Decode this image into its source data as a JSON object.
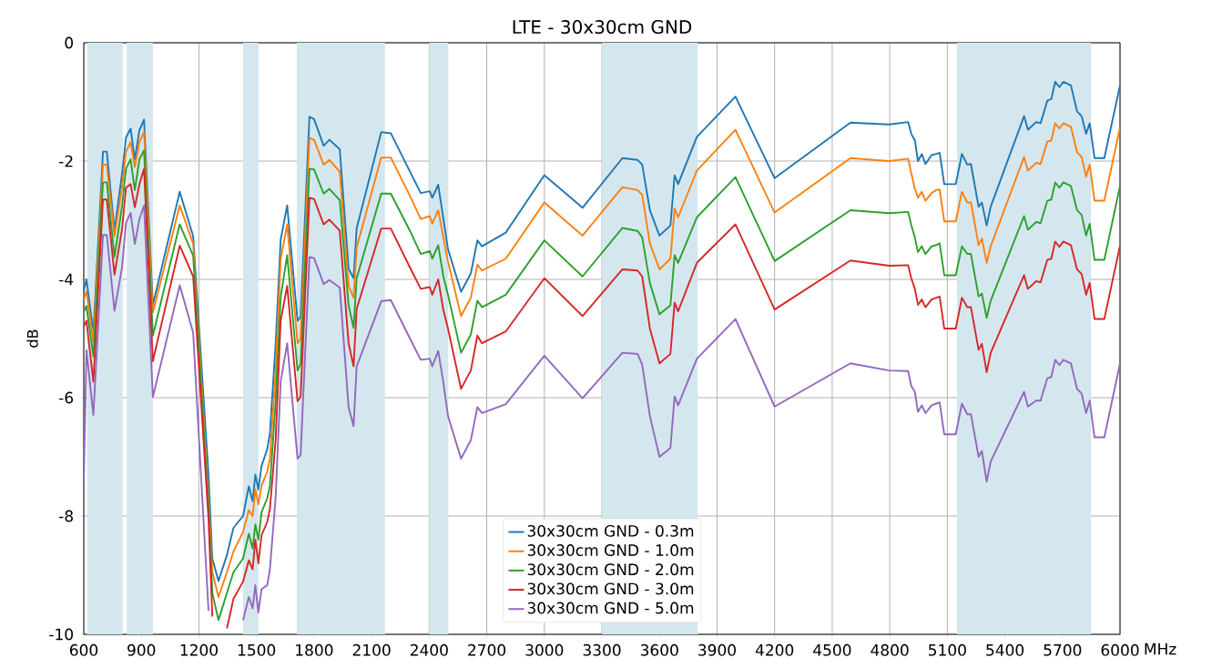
{
  "chart_data": {
    "type": "line",
    "title": "LTE - 30x30cm GND",
    "xlabel": "MHz",
    "ylabel": "dB",
    "x": [
      600,
      614,
      650,
      700,
      720,
      760,
      800,
      820,
      844,
      866,
      890,
      914,
      960,
      1100,
      1170,
      1250,
      1270,
      1302,
      1346,
      1380,
      1430,
      1460,
      1480,
      1494,
      1510,
      1526,
      1556,
      1570,
      1600,
      1626,
      1660,
      1714,
      1730,
      1776,
      1800,
      1850,
      1880,
      1934,
      1980,
      2006,
      2022,
      2150,
      2200,
      2300,
      2356,
      2403,
      2416,
      2447,
      2474,
      2498,
      2566,
      2617,
      2651,
      2675,
      2799,
      3000,
      3199,
      3407,
      3486,
      3510,
      3550,
      3600,
      3657,
      3679,
      3697,
      3795,
      3996,
      4200,
      4595,
      4797,
      4896,
      4912,
      4931,
      4947,
      4967,
      4986,
      5018,
      5042,
      5060,
      5084,
      5144,
      5176,
      5204,
      5223,
      5263,
      5280,
      5305,
      5326,
      5500,
      5520,
      5563,
      5586,
      5621,
      5642,
      5662,
      5684,
      5705,
      5744,
      5776,
      5800,
      5823,
      5842,
      5867,
      5918,
      6000
    ],
    "series": [
      {
        "name": "30x30cm GND - 0.3m",
        "color": "#1f77b4",
        "values": [
          -4.2,
          -4.0,
          -4.9,
          -1.84,
          -1.84,
          -3.17,
          -2.2,
          -1.6,
          -1.45,
          -1.97,
          -1.48,
          -1.3,
          -4.43,
          -2.52,
          -3.27,
          -7.3,
          -8.72,
          -9.1,
          -8.66,
          -8.2,
          -8.0,
          -7.5,
          -7.75,
          -7.3,
          -7.55,
          -7.16,
          -6.87,
          -6.6,
          -5.08,
          -3.33,
          -2.75,
          -4.7,
          -4.63,
          -1.25,
          -1.29,
          -1.74,
          -1.64,
          -1.8,
          -3.82,
          -3.98,
          -3.14,
          -1.51,
          -1.53,
          -2.18,
          -2.54,
          -2.51,
          -2.62,
          -2.4,
          -2.98,
          -3.49,
          -4.21,
          -3.9,
          -3.34,
          -3.44,
          -3.21,
          -2.24,
          -2.79,
          -1.95,
          -1.98,
          -2.06,
          -2.83,
          -3.26,
          -3.09,
          -2.24,
          -2.39,
          -1.59,
          -0.91,
          -2.29,
          -1.35,
          -1.38,
          -1.34,
          -1.54,
          -1.65,
          -2.0,
          -1.88,
          -2.05,
          -1.9,
          -1.88,
          -1.86,
          -2.39,
          -2.39,
          -1.88,
          -2.06,
          -2.05,
          -2.77,
          -2.7,
          -3.09,
          -2.77,
          -1.24,
          -1.47,
          -1.34,
          -1.36,
          -0.98,
          -0.95,
          -0.66,
          -0.75,
          -0.66,
          -0.72,
          -1.16,
          -1.24,
          -1.54,
          -1.36,
          -1.95,
          -1.95,
          -0.72
        ]
      },
      {
        "name": "30x30cm GND - 1.0m",
        "color": "#ff7f0e",
        "values": [
          -4.35,
          -4.2,
          -5.05,
          -2.06,
          -2.06,
          -3.27,
          -2.42,
          -1.84,
          -1.68,
          -2.1,
          -1.68,
          -1.51,
          -4.56,
          -2.75,
          -3.4,
          -7.7,
          -8.95,
          -9.37,
          -8.95,
          -8.6,
          -8.27,
          -7.9,
          -8.0,
          -7.55,
          -7.8,
          -7.49,
          -7.25,
          -7.03,
          -5.54,
          -3.66,
          -3.07,
          -5.08,
          -5.0,
          -1.61,
          -1.64,
          -2.06,
          -1.98,
          -2.18,
          -4.11,
          -4.31,
          -3.46,
          -1.94,
          -1.94,
          -2.59,
          -2.98,
          -2.93,
          -3.06,
          -2.83,
          -3.29,
          -3.7,
          -4.62,
          -4.31,
          -3.75,
          -3.85,
          -3.65,
          -2.7,
          -3.26,
          -2.44,
          -2.49,
          -2.57,
          -3.39,
          -3.83,
          -3.65,
          -2.8,
          -2.95,
          -2.16,
          -1.47,
          -2.87,
          -1.95,
          -2.0,
          -1.96,
          -2.2,
          -2.47,
          -2.62,
          -2.52,
          -2.67,
          -2.54,
          -2.49,
          -2.48,
          -3.02,
          -3.02,
          -2.52,
          -2.7,
          -2.7,
          -3.42,
          -3.31,
          -3.72,
          -3.44,
          -1.93,
          -2.16,
          -2.03,
          -2.05,
          -1.67,
          -1.65,
          -1.36,
          -1.45,
          -1.36,
          -1.42,
          -1.85,
          -1.93,
          -2.26,
          -2.06,
          -2.67,
          -2.67,
          -1.43
        ]
      },
      {
        "name": "30x30cm GND - 2.0m",
        "color": "#2ca02c",
        "values": [
          -4.55,
          -4.45,
          -5.3,
          -2.36,
          -2.36,
          -3.62,
          -2.75,
          -2.13,
          -1.97,
          -2.49,
          -1.97,
          -1.82,
          -4.95,
          -3.07,
          -3.6,
          -7.85,
          -9.3,
          -9.76,
          -9.3,
          -8.95,
          -8.72,
          -8.3,
          -8.55,
          -8.14,
          -8.4,
          -7.94,
          -7.7,
          -7.49,
          -6.06,
          -4.3,
          -3.59,
          -5.54,
          -5.43,
          -2.13,
          -2.14,
          -2.55,
          -2.47,
          -2.66,
          -4.44,
          -4.82,
          -3.98,
          -2.55,
          -2.55,
          -3.18,
          -3.57,
          -3.52,
          -3.65,
          -3.42,
          -3.95,
          -4.26,
          -5.24,
          -4.93,
          -4.36,
          -4.47,
          -4.26,
          -3.34,
          -3.95,
          -3.13,
          -3.18,
          -3.29,
          -4.06,
          -4.59,
          -4.44,
          -3.59,
          -3.72,
          -2.95,
          -2.27,
          -3.69,
          -2.83,
          -2.88,
          -2.86,
          -3.08,
          -3.29,
          -3.54,
          -3.44,
          -3.57,
          -3.44,
          -3.42,
          -3.39,
          -3.93,
          -3.93,
          -3.44,
          -3.57,
          -3.57,
          -4.29,
          -4.24,
          -4.65,
          -4.36,
          -2.93,
          -3.16,
          -3.03,
          -3.05,
          -2.67,
          -2.65,
          -2.36,
          -2.45,
          -2.36,
          -2.42,
          -2.83,
          -2.91,
          -3.26,
          -3.06,
          -3.67,
          -3.67,
          -2.42
        ]
      },
      {
        "name": "30x30cm GND - 3.0m",
        "color": "#d62728",
        "values": [
          -4.8,
          -4.7,
          -5.73,
          -2.65,
          -2.65,
          -3.92,
          -3.14,
          -2.45,
          -2.39,
          -2.78,
          -2.39,
          -2.13,
          -5.38,
          -3.43,
          -3.95,
          -8.05,
          -9.7,
          null,
          -9.9,
          -9.4,
          -9.11,
          -8.75,
          -8.9,
          -8.4,
          -8.8,
          -8.33,
          -8.1,
          -7.88,
          -6.71,
          -4.7,
          -4.11,
          -6.06,
          -5.98,
          -2.62,
          -2.64,
          -3.07,
          -2.99,
          -3.18,
          -5.08,
          -5.47,
          -4.5,
          -3.14,
          -3.14,
          -3.8,
          -4.16,
          -4.13,
          -4.26,
          -4.0,
          -4.52,
          -4.83,
          -5.85,
          -5.54,
          -4.95,
          -5.08,
          -4.88,
          -3.98,
          -4.62,
          -3.83,
          -3.85,
          -3.95,
          -4.83,
          -5.42,
          -5.26,
          -4.39,
          -4.54,
          -3.72,
          -3.07,
          -4.51,
          -3.68,
          -3.77,
          -3.76,
          -3.98,
          -4.16,
          -4.43,
          -4.34,
          -4.47,
          -4.34,
          -4.31,
          -4.29,
          -4.83,
          -4.83,
          -4.31,
          -4.47,
          -4.47,
          -5.19,
          -5.09,
          -5.57,
          -5.24,
          -3.93,
          -4.16,
          -4.03,
          -4.05,
          -3.67,
          -3.65,
          -3.36,
          -3.45,
          -3.36,
          -3.42,
          -3.83,
          -3.91,
          -4.26,
          -4.06,
          -4.67,
          -4.67,
          -3.43
        ]
      },
      {
        "name": "30x30cm GND - 5.0m",
        "color": "#9467bd",
        "values": [
          -7.4,
          -5.2,
          -6.29,
          -3.25,
          -3.25,
          -4.53,
          -3.79,
          -3.04,
          -2.88,
          -3.4,
          -2.98,
          -2.75,
          -5.99,
          -4.1,
          -4.9,
          -9.6,
          null,
          null,
          null,
          null,
          -9.76,
          -9.37,
          -9.56,
          -9.17,
          -9.63,
          -9.24,
          -9.17,
          -8.9,
          -7.68,
          -5.73,
          -5.08,
          -7.03,
          -6.97,
          -3.62,
          -3.64,
          -4.08,
          -4.01,
          -4.14,
          -6.16,
          -6.48,
          -5.47,
          -4.37,
          -4.35,
          -5.0,
          -5.36,
          -5.34,
          -5.47,
          -5.21,
          -5.75,
          -6.31,
          -7.03,
          -6.72,
          -6.16,
          -6.26,
          -6.11,
          -5.29,
          -6.01,
          -5.24,
          -5.26,
          -5.44,
          -6.31,
          -7.0,
          -6.85,
          -5.98,
          -6.13,
          -5.34,
          -4.67,
          -6.15,
          -5.42,
          -5.54,
          -5.55,
          -5.8,
          -5.9,
          -6.24,
          -6.13,
          -6.26,
          -6.13,
          -6.1,
          -6.08,
          -6.62,
          -6.62,
          -6.1,
          -6.28,
          -6.28,
          -7.0,
          -6.9,
          -7.42,
          -7.08,
          -5.9,
          -6.15,
          -6.05,
          -6.05,
          -5.67,
          -5.65,
          -5.36,
          -5.45,
          -5.36,
          -5.42,
          -5.85,
          -5.93,
          -6.26,
          -6.05,
          -6.67,
          -6.67,
          -5.42
        ]
      }
    ],
    "bands": [
      {
        "axis": "x",
        "from": 617,
        "to": 803,
        "color": "#d4e7ee"
      },
      {
        "axis": "x",
        "from": 824,
        "to": 960,
        "color": "#d4e7ee"
      },
      {
        "axis": "x",
        "from": 1430,
        "to": 1510,
        "color": "#d4e7ee"
      },
      {
        "axis": "x",
        "from": 1710,
        "to": 2170,
        "color": "#d4e7ee"
      },
      {
        "axis": "x",
        "from": 2400,
        "to": 2500,
        "color": "#d4e7ee"
      },
      {
        "axis": "x",
        "from": 3300,
        "to": 3800,
        "color": "#d4e7ee"
      },
      {
        "axis": "x",
        "from": 5150,
        "to": 5850,
        "color": "#d4e7ee"
      }
    ],
    "xlim": [
      600,
      6000
    ],
    "ylim": [
      -10,
      0
    ],
    "xticks": [
      600,
      900,
      1200,
      1500,
      1800,
      2100,
      2400,
      2700,
      3000,
      3300,
      3600,
      3900,
      4200,
      4500,
      4800,
      5100,
      5400,
      5700,
      6000
    ],
    "yticks": [
      -10,
      -8,
      -6,
      -4,
      -2,
      0
    ],
    "grid": true,
    "legend": "bottom",
    "line_style": "solid",
    "marker": "none"
  }
}
